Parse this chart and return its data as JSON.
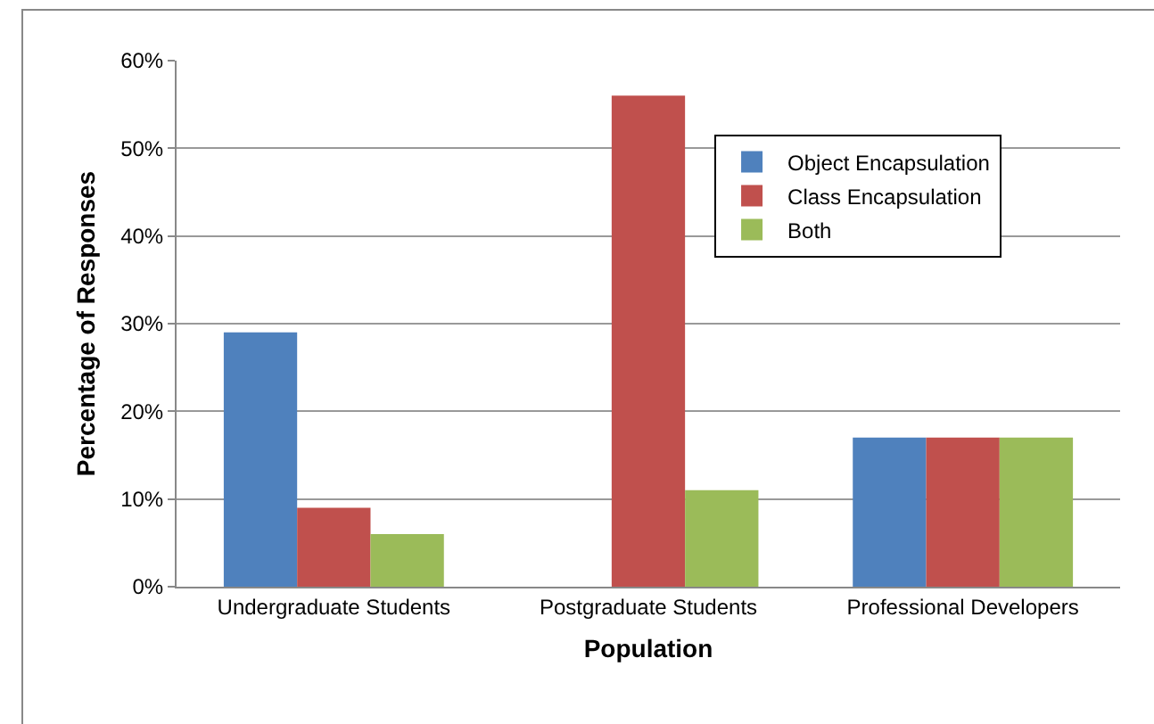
{
  "chart_data": {
    "type": "bar",
    "xlabel": "Population",
    "ylabel": "Percentage of Responses",
    "categories": [
      "Undergraduate Students",
      "Postgraduate Students",
      "Professional Developers"
    ],
    "series": [
      {
        "name": "Object Encapsulation",
        "color": "#4f81bd",
        "values": [
          29,
          0,
          17
        ]
      },
      {
        "name": "Class Encapsulation",
        "color": "#c0504d",
        "values": [
          9,
          56,
          17
        ]
      },
      {
        "name": "Both",
        "color": "#9bbb59",
        "values": [
          6,
          11,
          17
        ]
      }
    ],
    "ylim": [
      0,
      60
    ],
    "yticks": [
      {
        "value": 0,
        "label": "0%"
      },
      {
        "value": 10,
        "label": "10%"
      },
      {
        "value": 20,
        "label": "20%"
      },
      {
        "value": 30,
        "label": "30%"
      },
      {
        "value": 40,
        "label": "40%"
      },
      {
        "value": 50,
        "label": "50%"
      },
      {
        "value": 60,
        "label": "60%"
      }
    ],
    "grid": "y",
    "legend": "top right"
  }
}
